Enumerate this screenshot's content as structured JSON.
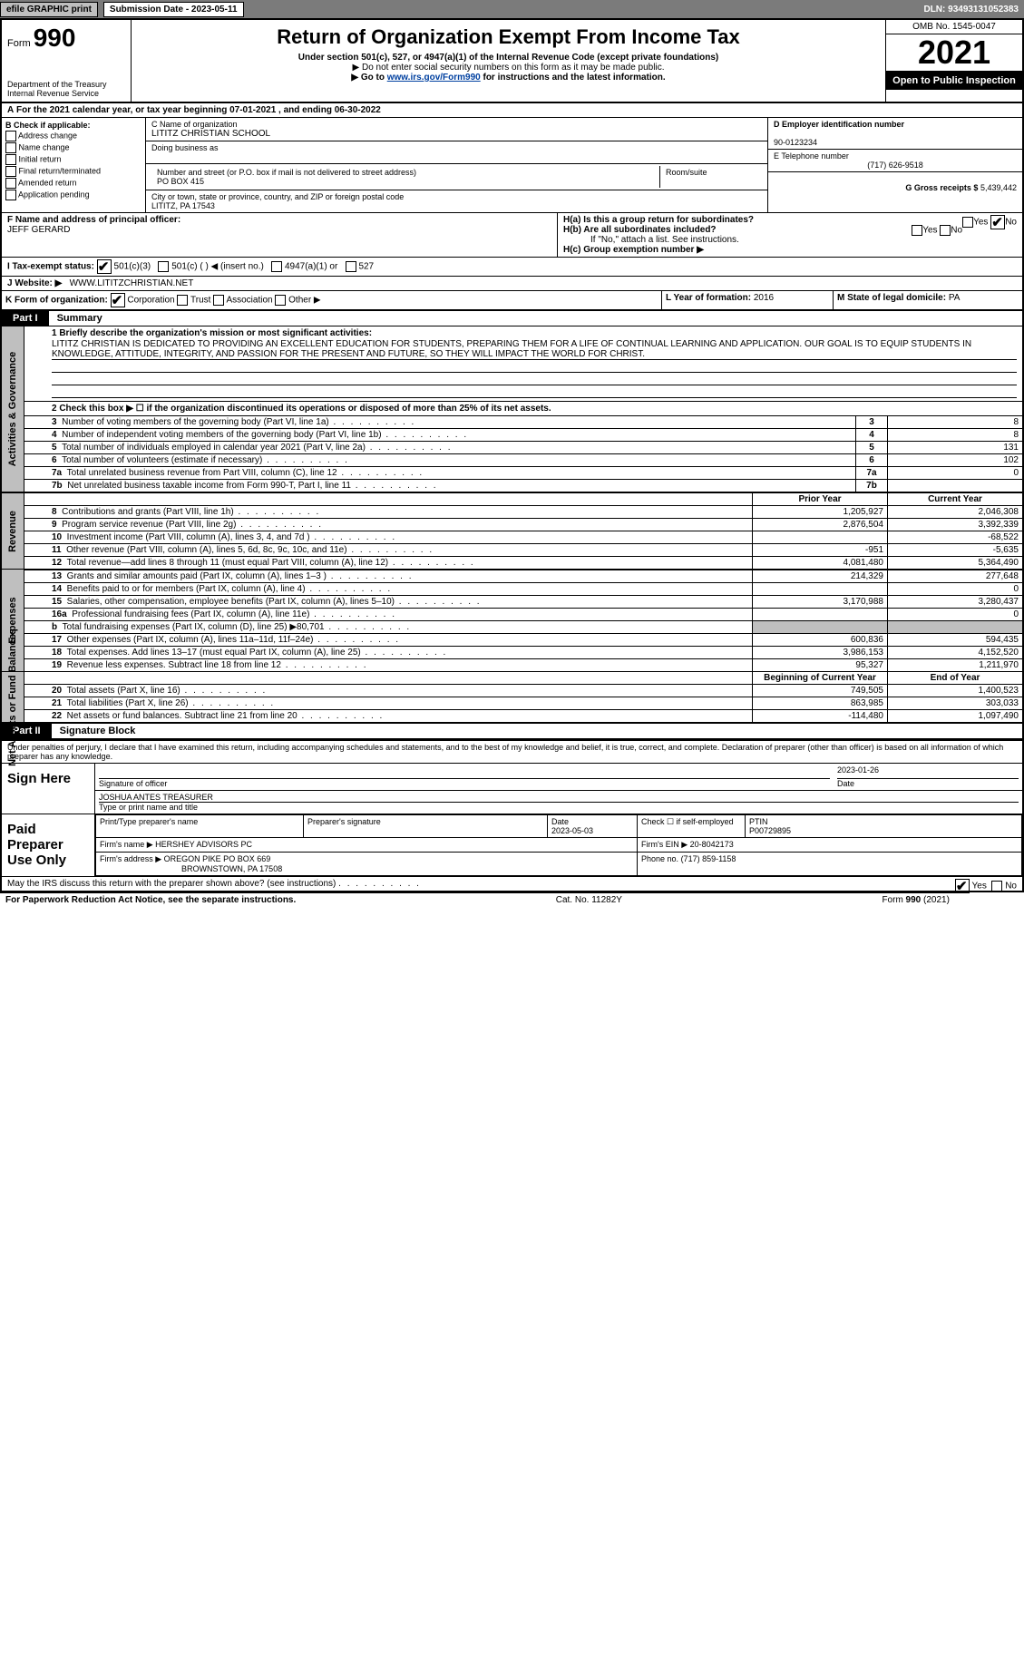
{
  "topbar": {
    "efile": "efile GRAPHIC print",
    "subdate_label": "Submission Date - 2023-05-11",
    "dln": "DLN: 93493131052383"
  },
  "header": {
    "form_label": "Form",
    "form_number": "990",
    "dept": "Department of the Treasury",
    "irs": "Internal Revenue Service",
    "title": "Return of Organization Exempt From Income Tax",
    "subtitle": "Under section 501(c), 527, or 4947(a)(1) of the Internal Revenue Code (except private foundations)",
    "note1": "▶ Do not enter social security numbers on this form as it may be made public.",
    "note2_pre": "▶ Go to ",
    "note2_link": "www.irs.gov/Form990",
    "note2_post": " for instructions and the latest information.",
    "omb": "OMB No. 1545-0047",
    "year": "2021",
    "open": "Open to Public Inspection"
  },
  "A": {
    "text": "For the 2021 calendar year, or tax year beginning 07-01-2021    , and ending 06-30-2022"
  },
  "B": {
    "label": "B Check if applicable:",
    "opts": [
      "Address change",
      "Name change",
      "Initial return",
      "Final return/terminated",
      "Amended return",
      "Application pending"
    ]
  },
  "C": {
    "name_label": "C Name of organization",
    "name": "LITITZ CHRISTIAN SCHOOL",
    "dba_label": "Doing business as",
    "addr_label": "Number and street (or P.O. box if mail is not delivered to street address)",
    "addr": "PO BOX 415",
    "room_label": "Room/suite",
    "city_label": "City or town, state or province, country, and ZIP or foreign postal code",
    "city": "LITITZ, PA  17543"
  },
  "D": {
    "label": "D Employer identification number",
    "value": "90-0123234"
  },
  "E": {
    "label": "E Telephone number",
    "value": "(717) 626-9518"
  },
  "G": {
    "label": "G Gross receipts $",
    "value": "5,439,442"
  },
  "F": {
    "label": "F  Name and address of principal officer:",
    "value": "JEFF GERARD"
  },
  "H": {
    "a": "H(a)  Is this a group return for subordinates?",
    "b": "H(b)  Are all subordinates included?",
    "b_note": "If \"No,\" attach a list. See instructions.",
    "c": "H(c)  Group exemption number ▶",
    "yes": "Yes",
    "no": "No"
  },
  "I": {
    "label": "I    Tax-exempt status:",
    "o1": "501(c)(3)",
    "o2": "501(c) (   ) ◀ (insert no.)",
    "o3": "4947(a)(1) or",
    "o4": "527"
  },
  "J": {
    "label": "J    Website: ▶",
    "value": "WWW.LITITZCHRISTIAN.NET"
  },
  "K": {
    "label": "K Form of organization:",
    "o1": "Corporation",
    "o2": "Trust",
    "o3": "Association",
    "o4": "Other ▶"
  },
  "L": {
    "label": "L Year of formation:",
    "value": "2016"
  },
  "M": {
    "label": "M State of legal domicile:",
    "value": "PA"
  },
  "part1": {
    "bar": "Part I",
    "title": "Summary",
    "mission_label": "1  Briefly describe the organization's mission or most significant activities:",
    "mission": "LITITZ CHRISTIAN IS DEDICATED TO PROVIDING AN EXCELLENT EDUCATION FOR STUDENTS, PREPARING THEM FOR A LIFE OF CONTINUAL LEARNING AND APPLICATION. OUR GOAL IS TO EQUIP STUDENTS IN KNOWLEDGE, ATTITUDE, INTEGRITY, AND PASSION FOR THE PRESENT AND FUTURE, SO THEY WILL IMPACT THE WORLD FOR CHRIST.",
    "line2": "2    Check this box ▶ ☐  if the organization discontinued its operations or disposed of more than 25% of its net assets.",
    "rows_act": [
      {
        "n": "3",
        "d": "Number of voting members of the governing body (Part VI, line 1a)",
        "v": "8"
      },
      {
        "n": "4",
        "d": "Number of independent voting members of the governing body (Part VI, line 1b)",
        "v": "8"
      },
      {
        "n": "5",
        "d": "Total number of individuals employed in calendar year 2021 (Part V, line 2a)",
        "v": "131"
      },
      {
        "n": "6",
        "d": "Total number of volunteers (estimate if necessary)",
        "v": "102"
      },
      {
        "n": "7a",
        "d": "Total unrelated business revenue from Part VIII, column (C), line 12",
        "v": "0"
      },
      {
        "n": "7b",
        "d": "Net unrelated business taxable income from Form 990-T, Part I, line 11",
        "v": ""
      }
    ],
    "prior": "Prior Year",
    "current": "Current Year",
    "rows_rev": [
      {
        "n": "8",
        "d": "Contributions and grants (Part VIII, line 1h)",
        "p": "1,205,927",
        "c": "2,046,308"
      },
      {
        "n": "9",
        "d": "Program service revenue (Part VIII, line 2g)",
        "p": "2,876,504",
        "c": "3,392,339"
      },
      {
        "n": "10",
        "d": "Investment income (Part VIII, column (A), lines 3, 4, and 7d )",
        "p": "",
        "c": "-68,522"
      },
      {
        "n": "11",
        "d": "Other revenue (Part VIII, column (A), lines 5, 6d, 8c, 9c, 10c, and 11e)",
        "p": "-951",
        "c": "-5,635"
      },
      {
        "n": "12",
        "d": "Total revenue—add lines 8 through 11 (must equal Part VIII, column (A), line 12)",
        "p": "4,081,480",
        "c": "5,364,490"
      }
    ],
    "rows_exp": [
      {
        "n": "13",
        "d": "Grants and similar amounts paid (Part IX, column (A), lines 1–3 )",
        "p": "214,329",
        "c": "277,648"
      },
      {
        "n": "14",
        "d": "Benefits paid to or for members (Part IX, column (A), line 4)",
        "p": "",
        "c": "0"
      },
      {
        "n": "15",
        "d": "Salaries, other compensation, employee benefits (Part IX, column (A), lines 5–10)",
        "p": "3,170,988",
        "c": "3,280,437"
      },
      {
        "n": "16a",
        "d": "Professional fundraising fees (Part IX, column (A), line 11e)",
        "p": "",
        "c": "0"
      },
      {
        "n": "b",
        "d": "Total fundraising expenses (Part IX, column (D), line 25) ▶80,701",
        "p": "shade",
        "c": "shade"
      },
      {
        "n": "17",
        "d": "Other expenses (Part IX, column (A), lines 11a–11d, 11f–24e)",
        "p": "600,836",
        "c": "594,435"
      },
      {
        "n": "18",
        "d": "Total expenses. Add lines 13–17 (must equal Part IX, column (A), line 25)",
        "p": "3,986,153",
        "c": "4,152,520"
      },
      {
        "n": "19",
        "d": "Revenue less expenses. Subtract line 18 from line 12",
        "p": "95,327",
        "c": "1,211,970"
      }
    ],
    "begy": "Beginning of Current Year",
    "endy": "End of Year",
    "rows_na": [
      {
        "n": "20",
        "d": "Total assets (Part X, line 16)",
        "p": "749,505",
        "c": "1,400,523"
      },
      {
        "n": "21",
        "d": "Total liabilities (Part X, line 26)",
        "p": "863,985",
        "c": "303,033"
      },
      {
        "n": "22",
        "d": "Net assets or fund balances. Subtract line 21 from line 20",
        "p": "-114,480",
        "c": "1,097,490"
      }
    ]
  },
  "vlabels": {
    "act": "Activities & Governance",
    "rev": "Revenue",
    "exp": "Expenses",
    "na": "Net Assets or Fund Balances"
  },
  "part2": {
    "bar": "Part II",
    "title": "Signature Block",
    "decl": "Under penalties of perjury, I declare that I have examined this return, including accompanying schedules and statements, and to the best of my knowledge and belief, it is true, correct, and complete. Declaration of preparer (other than officer) is based on all information of which preparer has any knowledge.",
    "sign": "Sign Here",
    "sig_officer": "Signature of officer",
    "date_val": "2023-01-26",
    "date": "Date",
    "name_title": "JOSHUA ANTES  TREASURER",
    "name_title_label": "Type or print name and title",
    "paid": "Paid Preparer Use Only",
    "p_name_label": "Print/Type preparer's name",
    "p_sig_label": "Preparer's signature",
    "p_date_label": "Date",
    "p_date": "2023-05-03",
    "p_check": "Check ☐ if self-employed",
    "ptin_label": "PTIN",
    "ptin": "P00729895",
    "firm_name_label": "Firm's name    ▶",
    "firm_name": "HERSHEY ADVISORS PC",
    "firm_ein_label": "Firm's EIN ▶",
    "firm_ein": "20-8042173",
    "firm_addr_label": "Firm's address ▶",
    "firm_addr": "OREGON PIKE PO BOX 669",
    "firm_city": "BROWNSTOWN, PA  17508",
    "phone_label": "Phone no.",
    "phone": "(717) 859-1158",
    "discuss": "May the IRS discuss this return with the preparer shown above? (see instructions)"
  },
  "footer": {
    "pra": "For Paperwork Reduction Act Notice, see the separate instructions.",
    "cat": "Cat. No. 11282Y",
    "form": "Form 990 (2021)"
  }
}
